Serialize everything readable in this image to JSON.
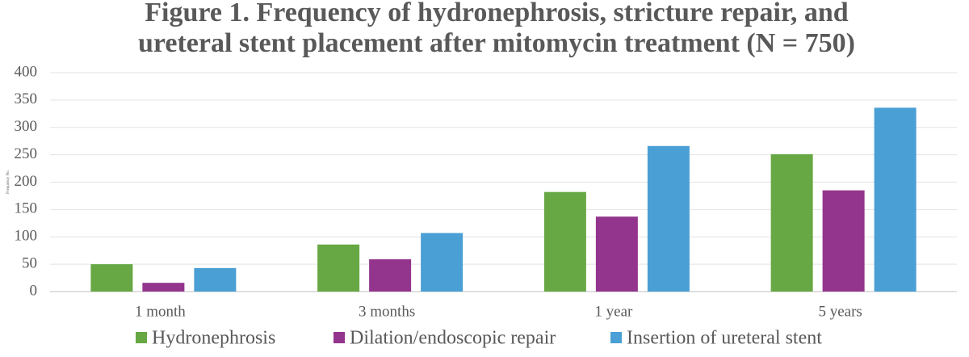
{
  "chart_data": {
    "type": "bar",
    "title": [
      "Figure 1. Frequency of hydronephrosis, stricture repair, and",
      "ureteral stent placement after mitomycin treatment (N = 750)"
    ],
    "y_label": "Frequency No.",
    "categories": [
      "1 month",
      "3 months",
      "1 year",
      "5 years"
    ],
    "series": [
      {
        "name": "Hydronephrosis",
        "color": "#67a844",
        "values": [
          50,
          86,
          182,
          251
        ]
      },
      {
        "name": "Dilation/endoscopic repair",
        "color": "#93358d",
        "values": [
          16,
          59,
          137,
          185
        ]
      },
      {
        "name": "Insertion of ureteral stent",
        "color": "#4a9fd4",
        "values": [
          43,
          107,
          266,
          336
        ]
      }
    ],
    "ylim": [
      0,
      400
    ],
    "yticks": [
      0,
      50,
      100,
      150,
      200,
      250,
      300,
      350,
      400
    ],
    "grid": true
  }
}
